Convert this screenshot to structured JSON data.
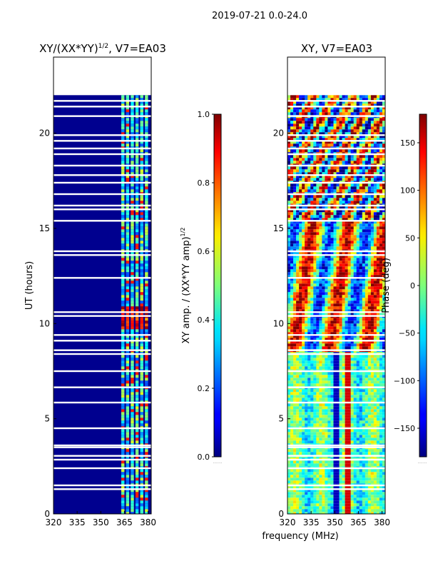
{
  "figure": {
    "suptitle": "2019-07-21 0.0-24.0",
    "xlabel_shared": "frequency (MHz)"
  },
  "chart_data": [
    {
      "type": "heatmap",
      "title": "XY/(XX*YY)",
      "title_exponent": "1/2",
      "title_suffix": ", V7=EA03",
      "xlabel": "frequency (MHz)",
      "ylabel": "UT (hours)",
      "xlim": [
        320,
        382
      ],
      "ylim": [
        0,
        24
      ],
      "xticks": [
        320,
        335,
        350,
        365,
        380
      ],
      "yticks": [
        0,
        5,
        10,
        15,
        20
      ],
      "colormap": "jet",
      "colorbar": {
        "label": "XY amp. / (XX*YY amp)",
        "label_exponent": "1/2",
        "range": [
          0.0,
          1.0
        ],
        "ticks": [
          "0.0",
          "0.2",
          "0.4",
          "0.6",
          "0.8",
          "1.0"
        ],
        "below_label": "......."
      },
      "data_coverage_hours": [
        0,
        22
      ],
      "blank_rows_hours": [
        1.3,
        1.5,
        2.4,
        2.85,
        3.05,
        3.5,
        3.6,
        4.5,
        5.85,
        6.65,
        7.5,
        8.4,
        8.6,
        9.1,
        9.4,
        10.4,
        10.6,
        12.4,
        13.6,
        13.8,
        15.4,
        16.0,
        16.2,
        16.8,
        17.4,
        17.8,
        18.3,
        18.9,
        19.2,
        19.6,
        19.9,
        20.9,
        21.4,
        21.7
      ],
      "bright_channels_mhz": [
        364,
        367,
        370,
        373,
        376,
        379
      ]
    },
    {
      "type": "heatmap",
      "title": "XY, V7=EA03",
      "xlabel": "frequency (MHz)",
      "ylabel": "",
      "xlim": [
        320,
        382
      ],
      "ylim": [
        0,
        24
      ],
      "xticks": [
        320,
        335,
        350,
        365,
        380
      ],
      "yticks": [
        0,
        5,
        10,
        15,
        20
      ],
      "colormap": "jet",
      "colorbar": {
        "label": "Phase (deg)",
        "range": [
          -180,
          180
        ],
        "ticks": [
          "−150",
          "−100",
          "−50",
          "0",
          "50",
          "100",
          "150"
        ],
        "below_label": "......."
      },
      "data_coverage_hours": [
        0,
        22
      ]
    }
  ]
}
